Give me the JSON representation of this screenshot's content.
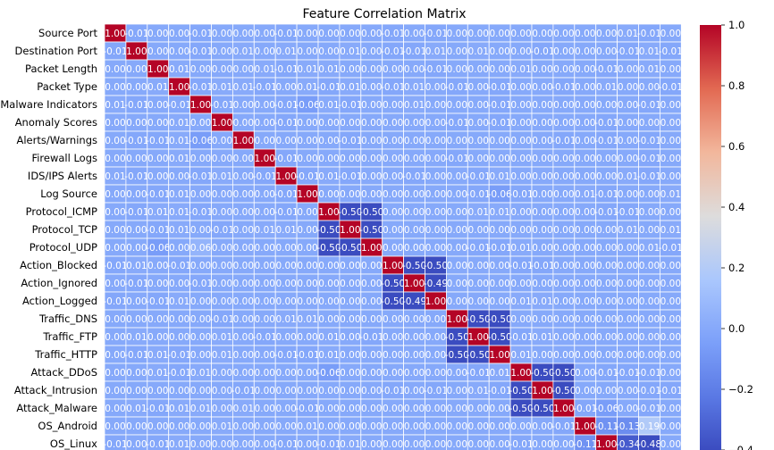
{
  "chart_data": {
    "type": "heatmap",
    "title": "Feature Correlation Matrix",
    "row_labels": [
      "Source Port",
      "Destination Port",
      "Packet Length",
      "Packet Type",
      "Malware Indicators",
      "Anomaly Scores",
      "Alerts/Warnings",
      "Firewall Logs",
      "IDS/IPS Alerts",
      "Log Source",
      "Protocol_ICMP",
      "Protocol_TCP",
      "Protocol_UDP",
      "Action_Blocked",
      "Action_Ignored",
      "Action_Logged",
      "Traffic_DNS",
      "Traffic_FTP",
      "Traffic_HTTP",
      "Attack_DDoS",
      "Attack_Intrusion",
      "Attack_Malware",
      "OS_Android",
      "OS_Linux"
    ],
    "col_count": 27,
    "values": [
      [
        1.0,
        -0.01,
        0.0,
        0.0,
        -0.01,
        0.0,
        0.0,
        0.0,
        -0.01,
        0.0,
        0.0,
        0.0,
        0.0,
        -0.01,
        -0.0,
        -0.01,
        0.0,
        0.0,
        0.0,
        0.0,
        0.0,
        0.0,
        0.0,
        0.0,
        0.01,
        -0.01,
        -0.0
      ],
      [
        -0.01,
        1.0,
        0.0,
        0.0,
        -0.01,
        0.0,
        0.01,
        0.0,
        0.01,
        0.0,
        0.0,
        0.01,
        0.0,
        -0.01,
        -0.01,
        0.01,
        -0.0,
        0.01,
        0.0,
        0.0,
        -0.01,
        0.0,
        0.0,
        0.0,
        -0.01,
        0.01,
        -0.01
      ],
      [
        0.0,
        0.0,
        1.0,
        0.01,
        0.0,
        0.0,
        0.0,
        0.01,
        -0.01,
        0.01,
        0.01,
        0.0,
        0.0,
        0.0,
        0.0,
        -0.01,
        -0.0,
        -0.0,
        -0.0,
        0.01,
        -0.0,
        0.0,
        0.0,
        -0.01,
        0.0,
        0.01,
        0.0
      ],
      [
        -0.0,
        0.0,
        0.01,
        1.0,
        -0.01,
        0.01,
        0.01,
        -0.01,
        0.0,
        0.01,
        -0.01,
        0.01,
        -0.0,
        -0.01,
        0.01,
        0.0,
        -0.01,
        0.0,
        -0.01,
        0.0,
        0.0,
        -0.01,
        0.0,
        0.01,
        0.0,
        -0.0,
        -0.01
      ],
      [
        0.01,
        -0.01,
        0.0,
        -0.01,
        1.0,
        -0.01,
        0.0,
        0.0,
        -0.01,
        -0.06,
        0.01,
        -0.01,
        0.0,
        -0.0,
        0.01,
        0.0,
        -0.0,
        0.0,
        -0.01,
        0.0,
        0.0,
        -0.0,
        0.0,
        0.0,
        -0.0,
        -0.01,
        0.0
      ],
      [
        0.0,
        0.0,
        -0.0,
        0.01,
        -0.0,
        1.0,
        0.0,
        0.0,
        -0.01,
        0.0,
        0.0,
        0.0,
        0.0,
        -0.0,
        -0.0,
        0.0,
        -0.01,
        -0.0,
        -0.01,
        -0.0,
        0.0,
        -0.0,
        0.0,
        -0.01,
        0.0,
        -0.0,
        0.0
      ],
      [
        -0.0,
        -0.01,
        -0.01,
        0.01,
        -0.06,
        -0.0,
        1.0,
        0.0,
        0.0,
        0.0,
        -0.0,
        -0.01,
        0.0,
        0.0,
        0.0,
        -0.0,
        0.0,
        0.0,
        0.0,
        0.0,
        0.0,
        -0.01,
        0.0,
        -0.01,
        -0.0,
        -0.01,
        0.0
      ],
      [
        -0.0,
        -0.0,
        -0.0,
        0.01,
        0.0,
        0.0,
        0.0,
        1.0,
        -0.01,
        0.0,
        0.0,
        -0.0,
        0.0,
        -0.0,
        -0.0,
        0.0,
        -0.01,
        0.0,
        -0.0,
        -0.0,
        0.0,
        -0.0,
        -0.0,
        0.0,
        0.0,
        -0.01,
        0.0
      ],
      [
        0.01,
        -0.01,
        0.0,
        0.0,
        -0.01,
        0.01,
        -0.0,
        -0.01,
        1.0,
        -0.01,
        0.01,
        -0.01,
        0.0,
        -0.0,
        -0.01,
        0.0,
        -0.0,
        -0.01,
        0.01,
        -0.0,
        -0.0,
        -0.0,
        0.0,
        -0.0,
        0.01,
        -0.01,
        0.0
      ],
      [
        -0.0,
        0.0,
        -0.01,
        0.01,
        -0.0,
        0.0,
        -0.0,
        -0.0,
        -0.01,
        1.0,
        0.0,
        -0.0,
        0.0,
        -0.0,
        -0.0,
        -0.0,
        0.0,
        -0.01,
        -0.06,
        -0.01,
        -0.0,
        -0.0,
        0.01,
        -0.01,
        0.0,
        0.0,
        0.01
      ],
      [
        -0.0,
        -0.01,
        0.01,
        0.01,
        -0.01,
        0.0,
        0.0,
        0.0,
        -0.01,
        0.0,
        1.0,
        -0.5,
        -0.5,
        -0.0,
        0.0,
        0.0,
        -0.0,
        0.01,
        0.01,
        0.0,
        0.0,
        -0.0,
        -0.0,
        -0.01,
        -0.01,
        0.0,
        0.0
      ],
      [
        -0.0,
        0.0,
        -0.01,
        0.01,
        0.0,
        -0.01,
        -0.0,
        0.01,
        0.01,
        -0.0,
        -0.5,
        1.0,
        -0.5,
        0.0,
        -0.0,
        0.0,
        -0.0,
        0.0,
        -0.0,
        0.0,
        -0.0,
        0.0,
        -0.0,
        0.0,
        0.01,
        -0.0,
        0.01
      ],
      [
        -0.0,
        -0.0,
        -0.06,
        0.0,
        0.06,
        0.0,
        0.0,
        0.0,
        0.0,
        -0.0,
        -0.5,
        -0.5,
        1.0,
        0.0,
        0.0,
        0.0,
        0.0,
        -0.01,
        -0.01,
        0.01,
        0.0,
        -0.0,
        -0.0,
        0.0,
        0.0,
        0.01,
        -0.01
      ],
      [
        -0.01,
        0.01,
        0.0,
        -0.01,
        0.0,
        0.0,
        0.0,
        0.0,
        -0.0,
        0.0,
        -0.0,
        0.0,
        0.0,
        1.0,
        -0.5,
        -0.5,
        0.0,
        -0.0,
        -0.0,
        -0.01,
        -0.01,
        0.0,
        -0.0,
        0.0,
        0.0,
        0.0,
        0.0
      ],
      [
        -0.0,
        -0.01,
        0.0,
        0.0,
        -0.01,
        0.0,
        -0.0,
        0.0,
        -0.0,
        -0.0,
        0.0,
        0.0,
        -0.0,
        -0.5,
        1.0,
        -0.49,
        0.0,
        0.0,
        -0.0,
        0.0,
        -0.0,
        -0.0,
        0.0,
        0.0,
        0.0,
        0.0,
        0.0
      ],
      [
        -0.01,
        0.0,
        -0.01,
        0.01,
        0.0,
        0.0,
        -0.0,
        0.0,
        0.0,
        0.0,
        0.0,
        0.0,
        0.0,
        -0.5,
        -0.49,
        1.0,
        0.0,
        0.0,
        0.0,
        0.01,
        0.01,
        0.0,
        0.0,
        -0.0,
        0.0,
        0.0,
        0.0
      ],
      [
        -0.0,
        -0.0,
        -0.0,
        -0.0,
        0.0,
        -0.01,
        -0.0,
        0.0,
        0.01,
        0.01,
        0.0,
        -0.0,
        0.0,
        0.0,
        0.0,
        0.0,
        1.0,
        -0.5,
        -0.5,
        -0.0,
        -0.0,
        0.0,
        -0.0,
        -0.0,
        -0.0,
        0.0,
        0.0
      ],
      [
        -0.0,
        0.01,
        0.0,
        0.0,
        0.0,
        0.01,
        0.0,
        -0.01,
        -0.0,
        -0.0,
        0.01,
        0.0,
        -0.01,
        -0.0,
        0.0,
        -0.0,
        -0.5,
        1.0,
        -0.5,
        -0.01,
        0.01,
        0.0,
        0.0,
        0.0,
        0.0,
        0.0,
        0.0
      ],
      [
        -0.0,
        -0.01,
        0.01,
        -0.01,
        0.0,
        0.01,
        -0.0,
        0.0,
        -0.01,
        -0.01,
        0.01,
        -0.0,
        0.0,
        -0.0,
        -0.0,
        0.0,
        -0.5,
        -0.5,
        1.0,
        0.01,
        0.0,
        0.0,
        0.0,
        0.0,
        0.0,
        0.0,
        0.0
      ],
      [
        -0.0,
        0.0,
        0.01,
        -0.01,
        0.01,
        0.0,
        0.0,
        -0.0,
        0.0,
        -0.0,
        -0.06,
        0.0,
        0.0,
        0.0,
        0.0,
        0.0,
        0.0,
        -0.01,
        0.01,
        1.0,
        -0.5,
        -0.5,
        0.0,
        -0.01,
        -0.01,
        -0.01,
        0.0
      ],
      [
        -0.0,
        -0.0,
        -0.0,
        0.0,
        0.0,
        -0.0,
        -0.01,
        0.0,
        0.0,
        0.0,
        -0.0,
        0.0,
        0.0,
        -0.01,
        -0.0,
        -0.01,
        -0.0,
        0.01,
        -0.01,
        -0.5,
        1.0,
        -0.5,
        0.0,
        0.0,
        0.0,
        -0.01,
        -0.01
      ],
      [
        -0.0,
        0.01,
        -0.01,
        0.01,
        0.01,
        0.0,
        0.01,
        0.0,
        -0.0,
        -0.01,
        0.0,
        -0.0,
        -0.0,
        0.0,
        0.0,
        0.0,
        0.0,
        0.0,
        0.0,
        -0.5,
        -0.5,
        1.0,
        -0.01,
        -0.06,
        0.0,
        -0.01,
        0.0
      ],
      [
        -0.0,
        -0.0,
        0.0,
        0.0,
        -0.0,
        0.01,
        0.0,
        -0.0,
        0.0,
        0.01,
        -0.0,
        0.0,
        0.0,
        0.0,
        0.0,
        -0.0,
        0.0,
        0.0,
        0.0,
        0.0,
        0.0,
        -0.01,
        1.0,
        -0.11,
        -0.13,
        0.19,
        0.0
      ],
      [
        -0.01,
        0.0,
        -0.01,
        0.01,
        0.0,
        0.0,
        0.0,
        0.0,
        -0.01,
        0.0,
        -0.01,
        0.01,
        0.0,
        0.0,
        0.0,
        0.0,
        0.0,
        0.0,
        0.0,
        -0.01,
        -0.0,
        -0.0,
        -0.11,
        1.0,
        -0.34,
        -0.48,
        0.0
      ]
    ],
    "colorbar": {
      "min": -0.4,
      "max": 1.0,
      "ticks": [
        1.0,
        0.8,
        0.6,
        0.4,
        0.2,
        0.0,
        -0.2,
        -0.4
      ]
    },
    "colormap": "coolwarm"
  }
}
